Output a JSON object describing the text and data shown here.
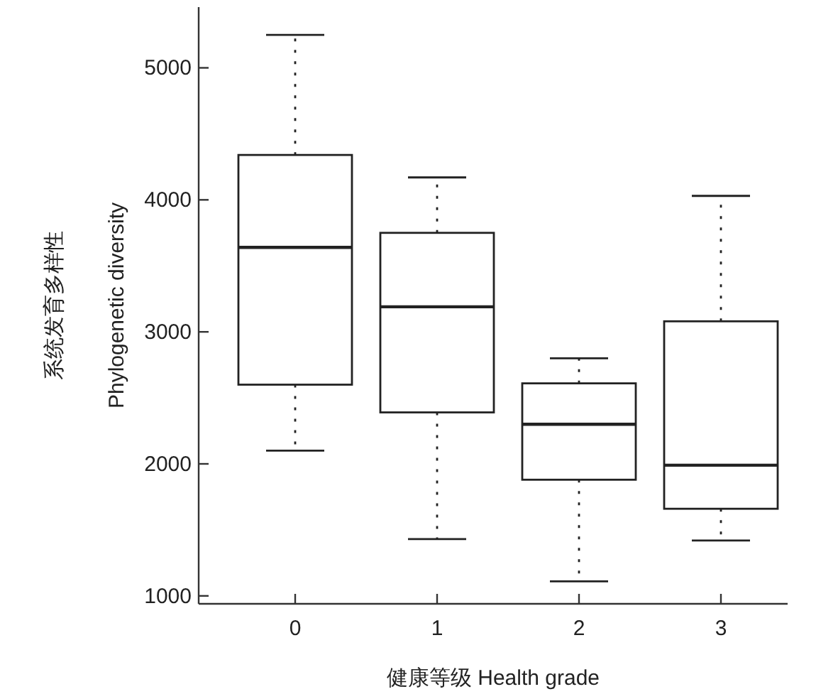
{
  "chart_data": {
    "type": "box",
    "xlabel": "健康等级 Health grade",
    "ylabel": "系统发育多样性\nPhylogenetic diversity",
    "categories": [
      "0",
      "1",
      "2",
      "3"
    ],
    "boxes": [
      {
        "low": 2100,
        "q1": 2600,
        "median": 3640,
        "q3": 4340,
        "high": 5250
      },
      {
        "low": 1430,
        "q1": 2390,
        "median": 3190,
        "q3": 3750,
        "high": 4170
      },
      {
        "low": 1110,
        "q1": 1880,
        "median": 2300,
        "q3": 2610,
        "high": 2800
      },
      {
        "low": 1420,
        "q1": 1660,
        "median": 1990,
        "q3": 3080,
        "high": 4030
      }
    ],
    "ylim": [
      940,
      5460
    ],
    "yticks": [
      1000,
      2000,
      3000,
      4000,
      5000
    ],
    "line_style": "dotted"
  }
}
